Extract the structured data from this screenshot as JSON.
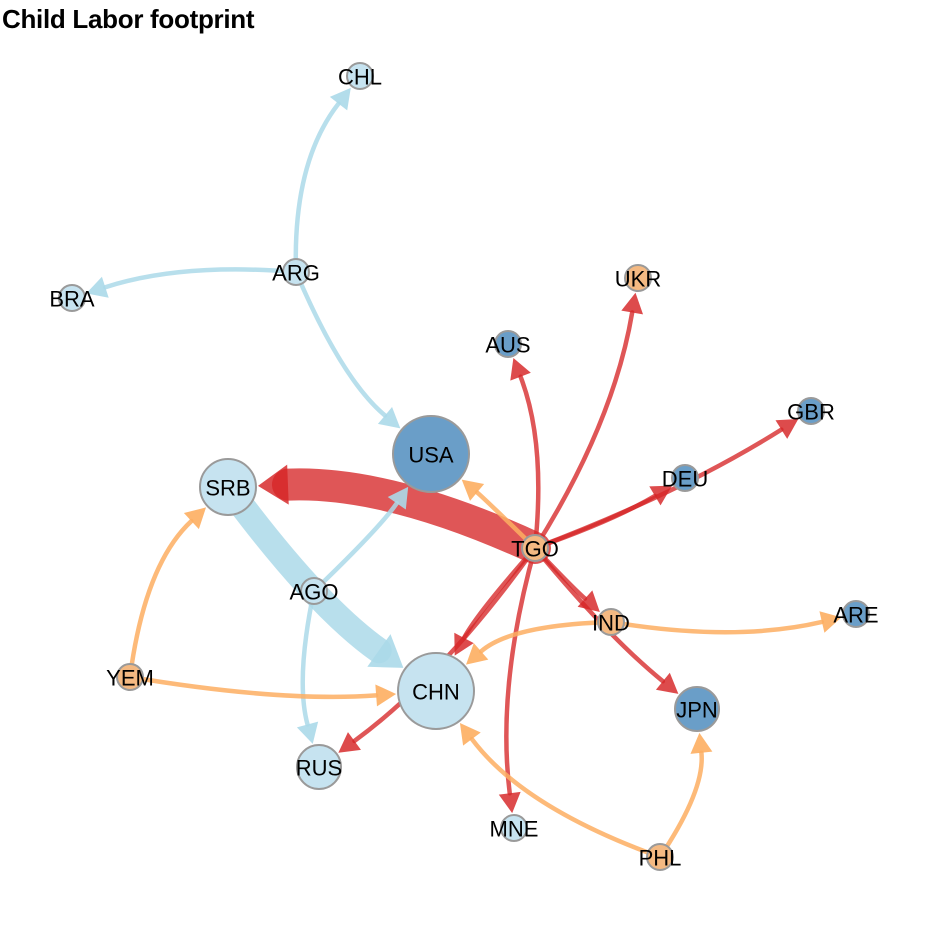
{
  "title": "Child Labor footprint",
  "colors": {
    "edge_red": "#d62728",
    "edge_orange": "#fdae61",
    "edge_blue": "#abd9e9",
    "node_dark": "#6a9ec8",
    "node_light": "#c6e3f0",
    "node_orange": "#f4b982",
    "node_stroke": "#9a9a9a"
  },
  "nodes": [
    {
      "id": "CHL",
      "label": "CHL",
      "fill": "light",
      "size": 1
    },
    {
      "id": "ARG",
      "label": "ARG",
      "fill": "light",
      "size": 1
    },
    {
      "id": "BRA",
      "label": "BRA",
      "fill": "light",
      "size": 1
    },
    {
      "id": "UKR",
      "label": "UKR",
      "fill": "orange",
      "size": 1
    },
    {
      "id": "AUS",
      "label": "AUS",
      "fill": "dark",
      "size": 1
    },
    {
      "id": "GBR",
      "label": "GBR",
      "fill": "dark",
      "size": 1
    },
    {
      "id": "USA",
      "label": "USA",
      "fill": "dark",
      "size": 4
    },
    {
      "id": "DEU",
      "label": "DEU",
      "fill": "dark",
      "size": 1
    },
    {
      "id": "SRB",
      "label": "SRB",
      "fill": "light",
      "size": 3
    },
    {
      "id": "TGO",
      "label": "TGO",
      "fill": "orange",
      "size": 1
    },
    {
      "id": "AGO",
      "label": "AGO",
      "fill": "light",
      "size": 1
    },
    {
      "id": "IND",
      "label": "IND",
      "fill": "orange",
      "size": 1
    },
    {
      "id": "ARE",
      "label": "ARE",
      "fill": "dark",
      "size": 1
    },
    {
      "id": "YEM",
      "label": "YEM",
      "fill": "orange",
      "size": 1
    },
    {
      "id": "CHN",
      "label": "CHN",
      "fill": "light",
      "size": 4
    },
    {
      "id": "JPN",
      "label": "JPN",
      "fill": "dark",
      "size": 2
    },
    {
      "id": "RUS",
      "label": "RUS",
      "fill": "light",
      "size": 2
    },
    {
      "id": "MNE",
      "label": "MNE",
      "fill": "light",
      "size": 1
    },
    {
      "id": "PHL",
      "label": "PHL",
      "fill": "orange",
      "size": 1
    }
  ],
  "edges": [
    {
      "from": "ARG",
      "to": "CHL",
      "color": "blue",
      "weight": 1
    },
    {
      "from": "ARG",
      "to": "BRA",
      "color": "blue",
      "weight": 1
    },
    {
      "from": "ARG",
      "to": "USA",
      "color": "blue",
      "weight": 1
    },
    {
      "from": "TGO",
      "to": "SRB",
      "color": "red",
      "weight": 10
    },
    {
      "from": "SRB",
      "to": "CHN",
      "color": "blue",
      "weight": 8
    },
    {
      "from": "AGO",
      "to": "USA",
      "color": "blue",
      "weight": 1
    },
    {
      "from": "AGO",
      "to": "RUS",
      "color": "blue",
      "weight": 1
    },
    {
      "from": "TGO",
      "to": "UKR",
      "color": "red",
      "weight": 1
    },
    {
      "from": "TGO",
      "to": "AUS",
      "color": "red",
      "weight": 1
    },
    {
      "from": "TGO",
      "to": "GBR",
      "color": "red",
      "weight": 1
    },
    {
      "from": "TGO",
      "to": "DEU",
      "color": "red",
      "weight": 1
    },
    {
      "from": "TGO",
      "to": "IND",
      "color": "red",
      "weight": 1
    },
    {
      "from": "TGO",
      "to": "JPN",
      "color": "red",
      "weight": 1
    },
    {
      "from": "TGO",
      "to": "MNE",
      "color": "red",
      "weight": 1
    },
    {
      "from": "TGO",
      "to": "RUS",
      "color": "red",
      "weight": 1
    },
    {
      "from": "TGO",
      "to": "CHN",
      "color": "red",
      "weight": 1
    },
    {
      "from": "TGO",
      "to": "USA",
      "color": "orange",
      "weight": 1
    },
    {
      "from": "IND",
      "to": "ARE",
      "color": "orange",
      "weight": 1
    },
    {
      "from": "IND",
      "to": "CHN",
      "color": "orange",
      "weight": 1
    },
    {
      "from": "YEM",
      "to": "SRB",
      "color": "orange",
      "weight": 1
    },
    {
      "from": "YEM",
      "to": "CHN",
      "color": "orange",
      "weight": 1
    },
    {
      "from": "PHL",
      "to": "CHN",
      "color": "orange",
      "weight": 1
    },
    {
      "from": "PHL",
      "to": "JPN",
      "color": "orange",
      "weight": 1
    }
  ]
}
